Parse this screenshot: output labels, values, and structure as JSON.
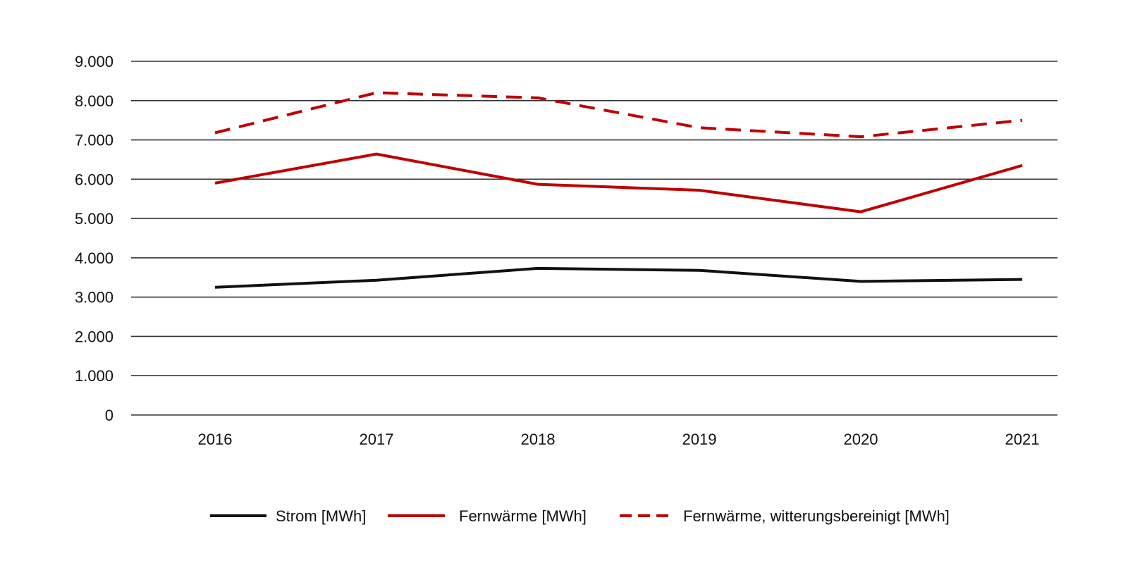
{
  "chart_data": {
    "type": "line",
    "title": "",
    "xlabel": "",
    "ylabel": "",
    "x": [
      "2016",
      "2017",
      "2018",
      "2019",
      "2020",
      "2021"
    ],
    "ylim": [
      0,
      9000
    ],
    "yticks": [
      0,
      1000,
      2000,
      3000,
      4000,
      5000,
      6000,
      7000,
      8000,
      9000
    ],
    "ytick_labels": [
      "0",
      "1.000",
      "2.000",
      "3.000",
      "4.000",
      "5.000",
      "6.000",
      "7.000",
      "8.000",
      "9.000"
    ],
    "grid": true,
    "legend_position": "bottom",
    "series": [
      {
        "name": "Strom [MWh]",
        "values": [
          3250,
          3430,
          3730,
          3680,
          3400,
          3450
        ],
        "color": "#111111",
        "style": "solid"
      },
      {
        "name": "Fernwärme [MWh]",
        "values": [
          5900,
          6640,
          5870,
          5720,
          5170,
          6350
        ],
        "color": "#c00000",
        "style": "solid"
      },
      {
        "name": "Fernwärme, witterungsbereinigt [MWh]",
        "values": [
          7180,
          8200,
          8070,
          7310,
          7080,
          7500
        ],
        "color": "#c00000",
        "style": "dashed"
      }
    ]
  }
}
